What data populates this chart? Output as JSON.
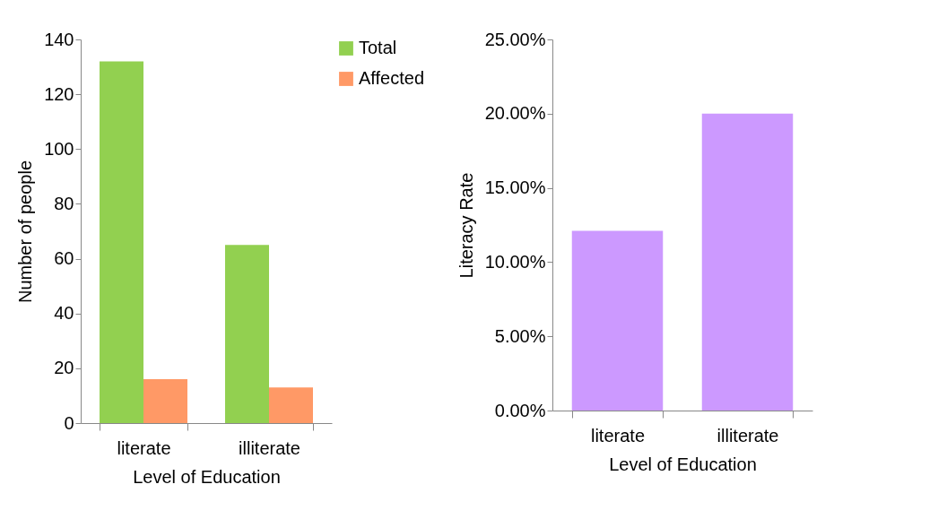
{
  "chart_data": [
    {
      "type": "bar",
      "categories": [
        "literate",
        "illiterate"
      ],
      "xlabel": "Level of Education",
      "ylabel": "Number of people",
      "ylim": [
        0,
        140
      ],
      "yticks": [
        0,
        20,
        40,
        60,
        80,
        100,
        120,
        140
      ],
      "grid": false,
      "legend": "right",
      "series": [
        {
          "name": "Total",
          "color": "#92d050",
          "values": [
            132,
            65
          ]
        },
        {
          "name": "Affected",
          "color": "#ff9966",
          "values": [
            16,
            13
          ]
        }
      ]
    },
    {
      "type": "bar",
      "categories": [
        "literate",
        "illiterate"
      ],
      "xlabel": "Level of Education",
      "ylabel": "Literacy Rate",
      "ylim": [
        0,
        25
      ],
      "yticks": [
        {
          "value": 0,
          "label": "0.00%"
        },
        {
          "value": 5,
          "label": "5.00%"
        },
        {
          "value": 10,
          "label": "10.00%"
        },
        {
          "value": 15,
          "label": "15.00%"
        },
        {
          "value": 20,
          "label": "20.00%"
        },
        {
          "value": 25,
          "label": "25.00%"
        }
      ],
      "grid": false,
      "series": [
        {
          "color": "#cc99ff",
          "values": [
            12.1,
            20
          ]
        }
      ]
    }
  ]
}
